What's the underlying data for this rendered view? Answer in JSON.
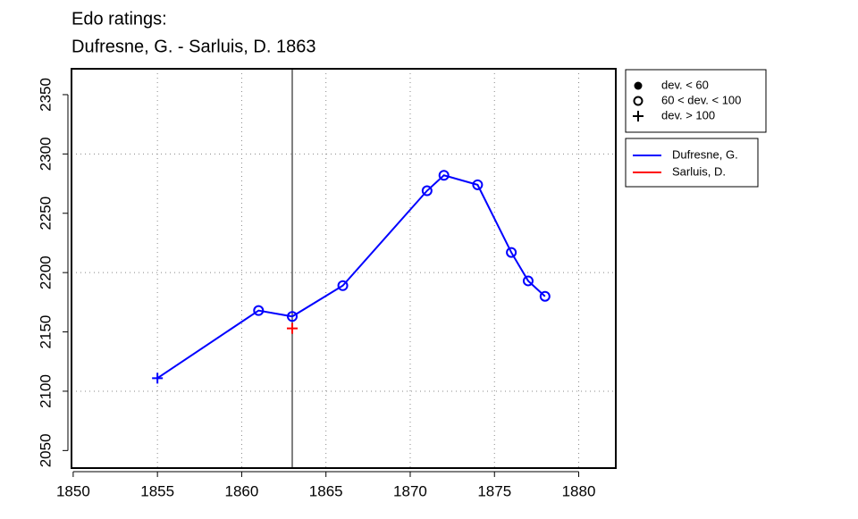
{
  "chart_data": {
    "type": "line",
    "title": "Edo ratings:",
    "subtitle": "Dufresne, G. - Sarluis, D. 1863",
    "series": [
      {
        "name": "Dufresne, G.",
        "color": "#0000ff",
        "x": [
          1855,
          1861,
          1863,
          1866,
          1871,
          1872,
          1874,
          1876,
          1877,
          1878
        ],
        "values": [
          2111,
          2168,
          2163,
          2189,
          2269,
          2282,
          2274,
          2217,
          2193,
          2180
        ],
        "markers": [
          "plus",
          "circle",
          "circle",
          "circle",
          "circle",
          "circle",
          "circle",
          "circle",
          "circle",
          "circle"
        ]
      },
      {
        "name": "Sarluis, D.",
        "color": "#ff0000",
        "x": [
          1863
        ],
        "values": [
          2153
        ],
        "markers": [
          "plus"
        ]
      }
    ],
    "marker_legend": [
      {
        "label": "dev. < 60",
        "marker": "dot"
      },
      {
        "label": "60 < dev. < 100",
        "marker": "circle"
      },
      {
        "label": "dev. > 100",
        "marker": "plus"
      }
    ],
    "vline": 1863,
    "xlim": [
      1849.9,
      1882.2
    ],
    "ylim": [
      2035.2,
      2371.8
    ],
    "xticks": [
      1850,
      1855,
      1860,
      1865,
      1870,
      1875,
      1880
    ],
    "yticks": [
      2050,
      2100,
      2150,
      2200,
      2250,
      2300,
      2350
    ],
    "xgrid": [
      1855,
      1860,
      1865,
      1870,
      1875,
      1880
    ],
    "ygrid": [
      2100,
      2200,
      2300
    ]
  }
}
